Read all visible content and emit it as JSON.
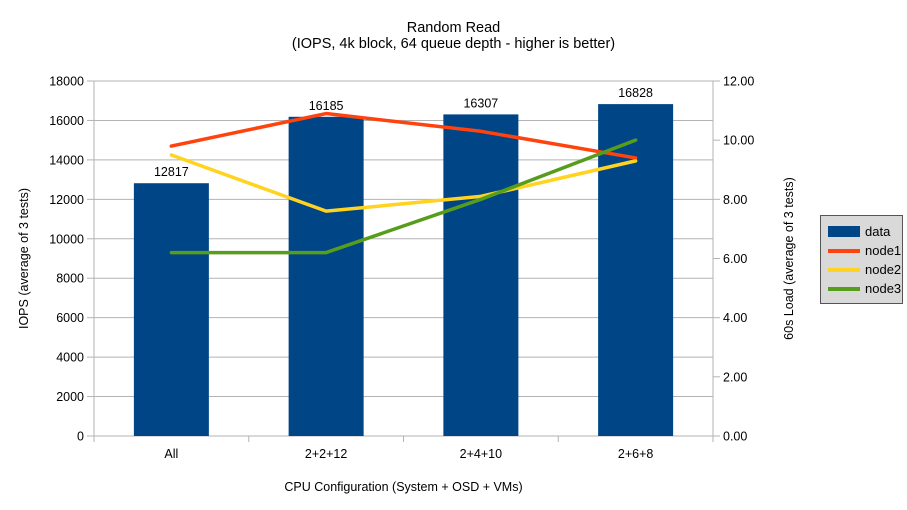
{
  "header": {
    "title": "Random Read",
    "subtitle": "(IOPS, 4k block, 64 queue depth - higher is better)"
  },
  "chart_data": {
    "type": "bar",
    "categories": [
      "All",
      "2+2+12",
      "2+4+10",
      "2+6+8"
    ],
    "bar_series": {
      "name": "data",
      "values": [
        12817,
        16185,
        16307,
        16828
      ],
      "color": "#004586"
    },
    "line_series": [
      {
        "name": "node1",
        "values": [
          9.8,
          10.9,
          10.3,
          9.4
        ],
        "color": "#ff420e"
      },
      {
        "name": "node2",
        "values": [
          9.5,
          7.6,
          8.1,
          9.3
        ],
        "color": "#ffd320"
      },
      {
        "name": "node3",
        "values": [
          6.2,
          6.2,
          8.0,
          10.0
        ],
        "color": "#579d1c"
      }
    ],
    "left_axis": {
      "label": "IOPS (average of 3 tests)",
      "min": 0,
      "max": 18000,
      "step": 2000
    },
    "right_axis": {
      "label": "60s Load (average of 3 tests)",
      "min": 0,
      "max": 12,
      "step": 2,
      "decimals": 2
    },
    "xlabel": "CPU Configuration (System + OSD + VMs)",
    "grid": true,
    "legend": {
      "position": "right",
      "items": [
        {
          "label": "data",
          "color": "#004586",
          "type": "bar"
        },
        {
          "label": "node1",
          "color": "#ff420e",
          "type": "line"
        },
        {
          "label": "node2",
          "color": "#ffd320",
          "type": "line"
        },
        {
          "label": "node3",
          "color": "#579d1c",
          "type": "line"
        }
      ]
    },
    "colors": {
      "grid": "#b3b3b3",
      "axis": "#b3b3b3",
      "legend_bg": "#d9d9d9",
      "text": "#000000"
    }
  }
}
